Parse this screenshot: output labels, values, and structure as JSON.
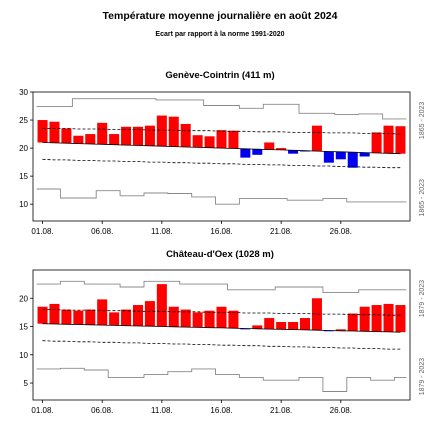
{
  "header": {
    "title": "Température moyenne journalière en août 2024",
    "subtitle": "Ecart par rapport à la norme 1991-2020"
  },
  "chart_data": [
    {
      "type": "bar",
      "title": "Genève-Cointrin (411 m)",
      "record_period": "1865 - 2023",
      "days": [
        1,
        2,
        3,
        4,
        5,
        6,
        7,
        8,
        9,
        10,
        11,
        12,
        13,
        14,
        15,
        16,
        17,
        18,
        19,
        20,
        21,
        22,
        23,
        24,
        25,
        26,
        27,
        28,
        29,
        30,
        31
      ],
      "x_tick_labels": [
        "01.08.",
        "06.08.",
        "11.08.",
        "16.08.",
        "21.08.",
        "26.08."
      ],
      "x_tick_days": [
        1,
        6,
        11,
        16,
        21,
        26
      ],
      "yticks": [
        10,
        15,
        20,
        25,
        30
      ],
      "ylim": [
        7,
        30
      ],
      "mean_temp": [
        25,
        24.7,
        23.5,
        22.2,
        22.5,
        24.5,
        22.5,
        23.8,
        23.8,
        24,
        25.8,
        25.6,
        24.3,
        22.3,
        22.1,
        23.2,
        23.1,
        18.3,
        18.8,
        21,
        20,
        19,
        19.5,
        24,
        17.4,
        18,
        16.5,
        18.5,
        22.8,
        24,
        23.9
      ],
      "norm": [
        21,
        20.93,
        20.87,
        20.8,
        20.73,
        20.67,
        20.6,
        20.53,
        20.47,
        20.4,
        20.33,
        20.27,
        20.2,
        20.13,
        20.07,
        20,
        19.93,
        19.87,
        19.8,
        19.73,
        19.67,
        19.6,
        19.53,
        19.47,
        19.4,
        19.33,
        19.27,
        19.2,
        19.13,
        19.07,
        19
      ],
      "norm_upper": [
        23.5,
        23.5,
        23.5,
        23.4,
        23.4,
        23.4,
        23.3,
        23.3,
        23.3,
        23.2,
        23.2,
        23.2,
        23.1,
        23.1,
        23.1,
        23,
        23,
        23,
        22.9,
        22.9,
        22.9,
        22.8,
        22.8,
        22.8,
        22.7,
        22.7,
        22.7,
        22.6,
        22.6,
        22.6,
        22.5
      ],
      "norm_lower": [
        18,
        17.9,
        17.9,
        17.8,
        17.8,
        17.7,
        17.7,
        17.6,
        17.6,
        17.5,
        17.5,
        17.4,
        17.4,
        17.3,
        17.3,
        17.2,
        17.2,
        17.1,
        17.1,
        17,
        17,
        16.9,
        16.9,
        16.8,
        16.8,
        16.7,
        16.7,
        16.6,
        16.6,
        16.5,
        16.5
      ],
      "record_max": [
        27.4,
        27.4,
        27.4,
        28.8,
        28.8,
        28.8,
        28.8,
        28.8,
        28.8,
        28.8,
        28.6,
        28.6,
        28.6,
        28.6,
        27.6,
        27.6,
        27.6,
        27.1,
        27.1,
        27.8,
        27.8,
        27.8,
        26.2,
        26.2,
        26.2,
        26,
        26,
        26.1,
        26.1,
        25.2,
        25.2
      ],
      "record_min": [
        12.7,
        12.7,
        11.1,
        11.1,
        11.1,
        12.4,
        12.4,
        11.5,
        11.5,
        12,
        12,
        11.9,
        11.9,
        11.3,
        11.3,
        10,
        10,
        11,
        11,
        11,
        11,
        10.7,
        10.7,
        10.7,
        11,
        11,
        10.4,
        10.4,
        10.4,
        10.4,
        10.4
      ]
    },
    {
      "type": "bar",
      "title": "Château-d'Oex (1028 m)",
      "record_period": "1879 - 2023",
      "days": [
        1,
        2,
        3,
        4,
        5,
        6,
        7,
        8,
        9,
        10,
        11,
        12,
        13,
        14,
        15,
        16,
        17,
        18,
        19,
        20,
        21,
        22,
        23,
        24,
        25,
        26,
        27,
        28,
        29,
        30,
        31
      ],
      "x_tick_labels": [
        "01.08.",
        "06.08.",
        "11.08.",
        "16.08.",
        "21.08.",
        "26.08."
      ],
      "x_tick_days": [
        1,
        6,
        11,
        16,
        21,
        26
      ],
      "yticks": [
        5,
        10,
        15,
        20
      ],
      "ylim": [
        2,
        25
      ],
      "mean_temp": [
        18.5,
        19,
        18,
        17.8,
        18,
        19.8,
        17.5,
        18,
        18.8,
        19.5,
        22.5,
        18.5,
        18,
        17.5,
        17.8,
        18.5,
        17.8,
        14.5,
        15.2,
        16.5,
        15.8,
        15.8,
        16.5,
        20,
        14.2,
        14.5,
        17.3,
        18.5,
        18.8,
        19,
        18.8
      ],
      "norm": [
        15.5,
        15.45,
        15.4,
        15.35,
        15.3,
        15.25,
        15.2,
        15.15,
        15.1,
        15.05,
        15,
        14.95,
        14.9,
        14.85,
        14.8,
        14.75,
        14.7,
        14.65,
        14.6,
        14.55,
        14.5,
        14.45,
        14.4,
        14.35,
        14.3,
        14.25,
        14.2,
        14.15,
        14.1,
        14.05,
        14
      ],
      "norm_upper": [
        18,
        18,
        17.9,
        17.9,
        17.9,
        17.8,
        17.8,
        17.8,
        17.7,
        17.7,
        17.7,
        17.6,
        17.6,
        17.6,
        17.5,
        17.5,
        17.5,
        17.4,
        17.4,
        17.4,
        17.3,
        17.3,
        17.3,
        17.2,
        17.2,
        17.2,
        17.1,
        17.1,
        17.1,
        17,
        17
      ],
      "norm_lower": [
        12.5,
        12.4,
        12.4,
        12.3,
        12.3,
        12.2,
        12.2,
        12.1,
        12.1,
        12,
        12,
        11.9,
        11.9,
        11.8,
        11.8,
        11.7,
        11.7,
        11.6,
        11.6,
        11.5,
        11.5,
        11.4,
        11.4,
        11.3,
        11.3,
        11.2,
        11.2,
        11.1,
        11.1,
        11,
        11
      ],
      "record_max": [
        22.5,
        22.5,
        23,
        23,
        22.5,
        22.5,
        22.5,
        22,
        22,
        23,
        23,
        23,
        22.5,
        22.5,
        22.5,
        22.5,
        21.5,
        21.5,
        21.5,
        21.5,
        22,
        22,
        22,
        22,
        21,
        21,
        21,
        21.5,
        21.5,
        21.5,
        21.5
      ],
      "record_min": [
        7.5,
        7.5,
        7.6,
        7.6,
        7.3,
        7.3,
        6,
        6,
        6,
        6.5,
        6.5,
        7,
        7,
        7.5,
        7.5,
        6.5,
        6.5,
        6,
        6,
        5.5,
        5.5,
        5.5,
        6,
        6,
        3.5,
        3.5,
        6,
        6,
        5.5,
        5.5,
        6
      ]
    }
  ]
}
